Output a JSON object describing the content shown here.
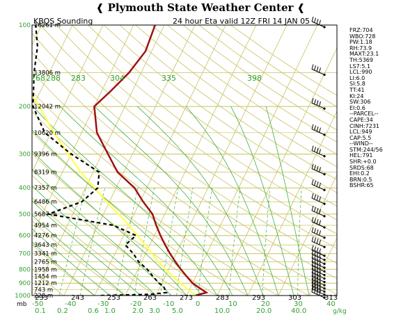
{
  "header": {
    "title": "Plymouth State Weather Center",
    "flag_left": "❰",
    "flag_right": "❰"
  },
  "chart_data": {
    "type": "skew-t sounding",
    "title_left": "KBOS Sounding",
    "title_right": "24 hour Eta valid 12Z FRI 14 JAN 05",
    "pressure_ticks": [
      100,
      200,
      300,
      400,
      500,
      600,
      700,
      800,
      900,
      1000
    ],
    "height_labels": [
      {
        "p": 100,
        "h": "16261 m"
      },
      {
        "p": 150,
        "h": "13806 m"
      },
      {
        "p": 200,
        "h": "12042 m"
      },
      {
        "p": 250,
        "h": "10620 m"
      },
      {
        "p": 300,
        "h": "9396 m"
      },
      {
        "p": 350,
        "h": "8319 m"
      },
      {
        "p": 400,
        "h": "7357 m"
      },
      {
        "p": 450,
        "h": "6486 m"
      },
      {
        "p": 500,
        "h": "5687 m"
      },
      {
        "p": 550,
        "h": "4954 m"
      },
      {
        "p": 600,
        "h": "4276 m"
      },
      {
        "p": 650,
        "h": "3643 m"
      },
      {
        "p": 700,
        "h": "3341 m"
      },
      {
        "p": 750,
        "h": "2765 m"
      },
      {
        "p": 800,
        "h": "1958 m"
      },
      {
        "p": 850,
        "h": "1454 m"
      },
      {
        "p": 900,
        "h": "1212 m"
      },
      {
        "p": 950,
        "h": "743 m"
      },
      {
        "p": 1000,
        "h": "228 m"
      }
    ],
    "theta_labels_bottom": [
      "233",
      "243",
      "253",
      "263",
      "273",
      "283",
      "293",
      "303",
      "313"
    ],
    "theta_labels_upper": [
      "268",
      "288",
      "283",
      "304",
      "335",
      "398"
    ],
    "temperature_ticks": [
      "-50",
      "-40",
      "-30",
      "-20",
      "-10",
      "0",
      "10",
      "20",
      "30",
      "40"
    ],
    "mixing_ratio_ticks": [
      "0.1",
      "0.2",
      "0.6",
      "1.0",
      "2.0",
      "3.0",
      "5.0",
      "10.0",
      "20.0",
      "40.0"
    ],
    "mb_label": "mb",
    "gkg_label": "g/kg",
    "temperature_profile": [
      {
        "p": 1000,
        "t": 3
      },
      {
        "p": 990,
        "t": 4
      },
      {
        "p": 975,
        "t": 6
      },
      {
        "p": 950,
        "t": 4
      },
      {
        "p": 925,
        "t": 2
      },
      {
        "p": 900,
        "t": 0
      },
      {
        "p": 850,
        "t": -3
      },
      {
        "p": 800,
        "t": -6
      },
      {
        "p": 750,
        "t": -9
      },
      {
        "p": 700,
        "t": -12
      },
      {
        "p": 650,
        "t": -15
      },
      {
        "p": 600,
        "t": -18
      },
      {
        "p": 550,
        "t": -21
      },
      {
        "p": 500,
        "t": -24
      },
      {
        "p": 450,
        "t": -29
      },
      {
        "p": 400,
        "t": -34
      },
      {
        "p": 350,
        "t": -42
      },
      {
        "p": 300,
        "t": -48
      },
      {
        "p": 250,
        "t": -55
      },
      {
        "p": 200,
        "t": -60
      },
      {
        "p": 175,
        "t": -57
      },
      {
        "p": 150,
        "t": -54
      },
      {
        "p": 125,
        "t": -52
      },
      {
        "p": 100,
        "t": -53
      }
    ],
    "dewpoint_profile": [
      {
        "p": 1000,
        "t": -28
      },
      {
        "p": 990,
        "t": -12
      },
      {
        "p": 975,
        "t": -7
      },
      {
        "p": 950,
        "t": -8
      },
      {
        "p": 925,
        "t": -9
      },
      {
        "p": 900,
        "t": -11
      },
      {
        "p": 850,
        "t": -14
      },
      {
        "p": 800,
        "t": -17
      },
      {
        "p": 750,
        "t": -21
      },
      {
        "p": 700,
        "t": -24
      },
      {
        "p": 650,
        "t": -28
      },
      {
        "p": 600,
        "t": -26
      },
      {
        "p": 550,
        "t": -35
      },
      {
        "p": 500,
        "t": -58
      },
      {
        "p": 450,
        "t": -49
      },
      {
        "p": 400,
        "t": -46
      },
      {
        "p": 350,
        "t": -48
      },
      {
        "p": 300,
        "t": -60
      },
      {
        "p": 250,
        "t": -72
      },
      {
        "p": 200,
        "t": -80
      },
      {
        "p": 150,
        "t": -85
      },
      {
        "p": 120,
        "t": -88
      },
      {
        "p": 100,
        "t": -92
      }
    ],
    "parcel_profile": [
      {
        "p": 1000,
        "t": 3
      },
      {
        "p": 950,
        "t": -0.5
      },
      {
        "p": 900,
        "t": -4
      },
      {
        "p": 850,
        "t": -7.5
      },
      {
        "p": 800,
        "t": -11
      },
      {
        "p": 750,
        "t": -14.5
      },
      {
        "p": 700,
        "t": -18
      },
      {
        "p": 650,
        "t": -21.5
      },
      {
        "p": 600,
        "t": -25.5
      },
      {
        "p": 550,
        "t": -30
      },
      {
        "p": 500,
        "t": -35
      },
      {
        "p": 450,
        "t": -41
      },
      {
        "p": 400,
        "t": -47
      },
      {
        "p": 350,
        "t": -54
      },
      {
        "p": 300,
        "t": -61
      },
      {
        "p": 250,
        "t": -69
      },
      {
        "p": 200,
        "t": -78
      },
      {
        "p": 150,
        "t": -90
      }
    ],
    "wind_barbs_pressures": [
      1000,
      975,
      950,
      925,
      900,
      875,
      850,
      825,
      800,
      775,
      750,
      725,
      700,
      650,
      600,
      550,
      500,
      450,
      400,
      350,
      300,
      250,
      200,
      150,
      100
    ],
    "colors": {
      "temperature": "#a01010",
      "dewpoint": "#000000",
      "parcel": "#ffff60",
      "isobar": "#c8c060",
      "isotherm": "#c8c060",
      "dry_adiabat": "#c8c060",
      "moist_adiabat": "#40b040",
      "mixing_ratio": "#40b040",
      "label_green": "#30a030"
    }
  },
  "indices": [
    "FRZ:704",
    "WBO:728",
    "PW:1.18",
    "RH:73.9",
    "MAXT:23.1",
    "TH:5369",
    "LS7:5.1",
    "LCL:990",
    "LI:6.0",
    "SI:5.8",
    "TT:41",
    "KI:24",
    "SW:306",
    "EI:0.6",
    "--PARCEL--",
    "CAPE:34",
    "CINH:7231",
    "LCL:949",
    "CAP:5.5",
    "--WIND--",
    "STM:244/56",
    "HEL:791",
    "SHR:+0.0",
    "SRDS:68",
    "EHI:0.2",
    "BRN:0.5",
    "BSHR:65"
  ]
}
